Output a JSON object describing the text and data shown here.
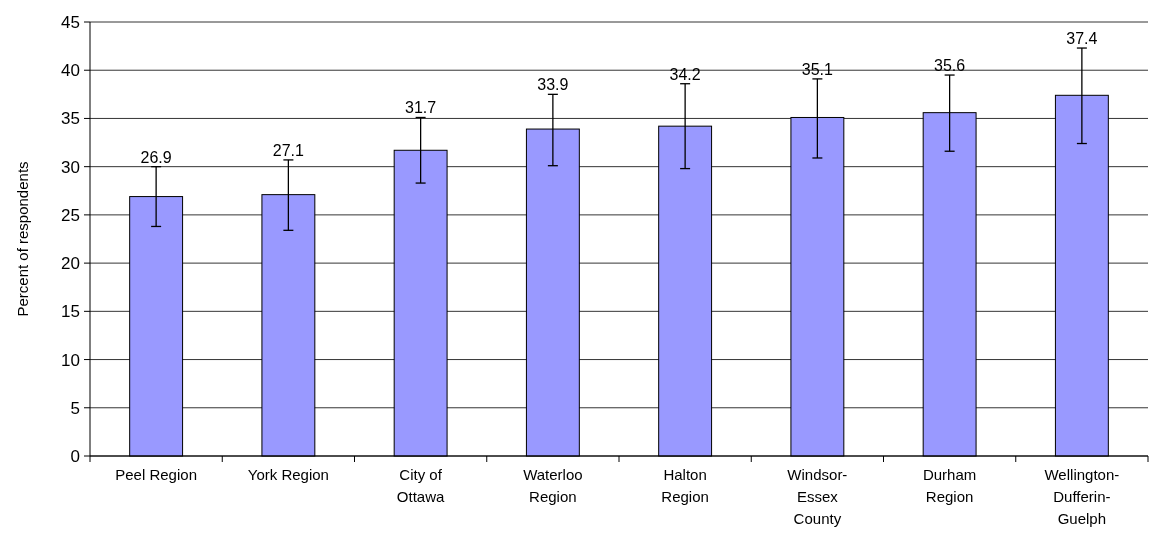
{
  "chart_data": {
    "type": "bar",
    "ylabel": "Percent of respondents",
    "categories": [
      "Peel Region",
      "York Region",
      "City of\nOttawa",
      "Waterloo\nRegion",
      "Halton\nRegion",
      "Windsor-\nEssex\nCounty",
      "Durham\nRegion",
      "Wellington-\nDufferin-\nGuelph"
    ],
    "values": [
      26.9,
      27.1,
      31.7,
      33.9,
      34.2,
      35.1,
      35.6,
      37.4
    ],
    "errors": [
      [
        23.8,
        30.0
      ],
      [
        23.4,
        30.7
      ],
      [
        28.3,
        35.1
      ],
      [
        30.1,
        37.5
      ],
      [
        29.8,
        38.6
      ],
      [
        30.9,
        39.1
      ],
      [
        31.6,
        39.5
      ],
      [
        32.4,
        42.3
      ]
    ],
    "color": "#9999ff",
    "data_labels": true,
    "ylim": [
      0,
      45
    ],
    "yticks": [
      0,
      5,
      10,
      15,
      20,
      25,
      30,
      35,
      40,
      45
    ],
    "grid": "y"
  }
}
